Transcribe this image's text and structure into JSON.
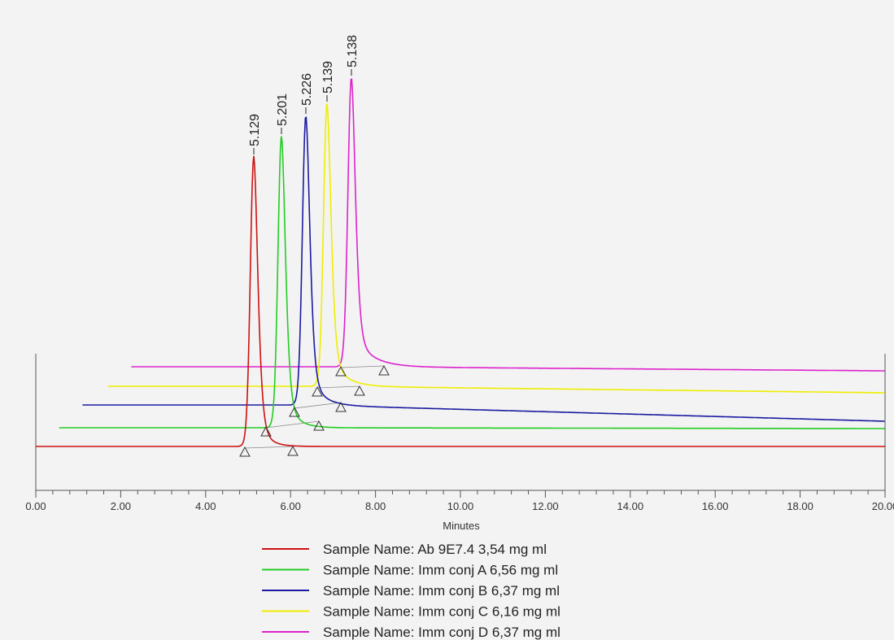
{
  "chart_data": {
    "type": "line",
    "title": "",
    "xlabel": "Minutes",
    "ylabel": "",
    "xlim": [
      0,
      20
    ],
    "x_ticks": [
      0,
      2,
      4,
      6,
      8,
      10,
      12,
      14,
      16,
      18,
      20
    ],
    "x_tick_labels": [
      "0.00",
      "2.00",
      "4.00",
      "6.00",
      "8.00",
      "10.00",
      "12.00",
      "14.00",
      "16.00",
      "18.00",
      "20.00"
    ],
    "grid": false,
    "legend_placement": "bottom-center",
    "layout_note_offsets_in_minutes_and_height": "traces are stacked with horizontal and vertical offsets as in the original overlay",
    "series": [
      {
        "name": "Sample Name:  Ab 9E7.4 3,54 mg ml",
        "color": "#cc1111",
        "peak_time": 5.129,
        "peak_label": "5.129",
        "peak_height": 0.69,
        "baseline_start": 0.0
      },
      {
        "name": "Sample Name:  Imm conj A 6,56 mg ml",
        "color": "#22cc22",
        "peak_time": 5.201,
        "peak_label": "5.201",
        "peak_height": 0.7,
        "baseline_start": 0.55
      },
      {
        "name": "Sample Name:  Imm conj B 6,37 mg ml",
        "color": "#1a1aa0",
        "peak_time": 5.226,
        "peak_label": "5.226",
        "peak_height": 0.71,
        "baseline_start": 1.1
      },
      {
        "name": "Sample Name:  Imm conj C 6,16 mg ml",
        "color": "#eeee00",
        "peak_time": 5.139,
        "peak_label": "5.139",
        "peak_height": 0.72,
        "baseline_start": 1.7
      },
      {
        "name": "Sample Name:  Imm conj D 6,37 mg ml",
        "color": "#dd22cc",
        "peak_time": 5.138,
        "peak_label": "5.138",
        "peak_height": 0.74,
        "baseline_start": 2.25
      }
    ]
  }
}
